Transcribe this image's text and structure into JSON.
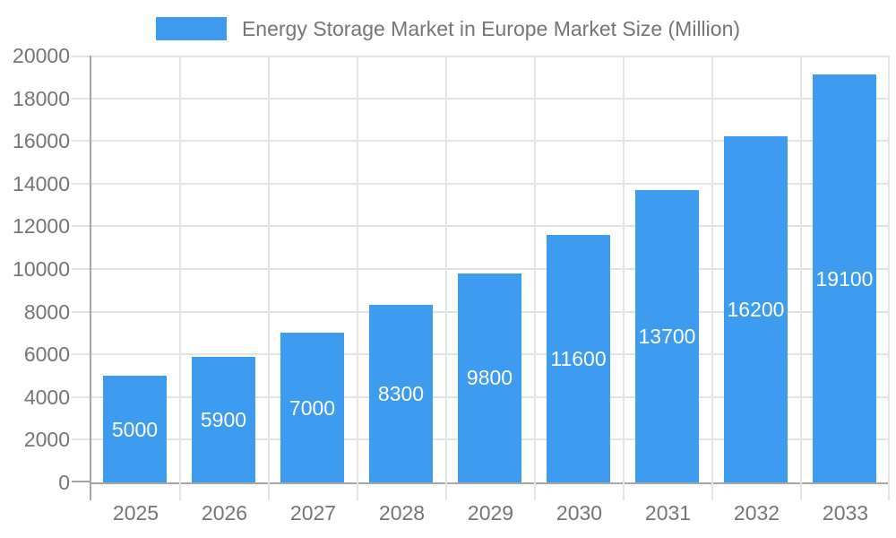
{
  "chart_data": {
    "type": "bar",
    "title": "Energy Storage Market in Europe Market Size (Million)",
    "categories": [
      "2025",
      "2026",
      "2027",
      "2028",
      "2029",
      "2030",
      "2031",
      "2032",
      "2033"
    ],
    "values": [
      5000,
      5900,
      7000,
      8300,
      9800,
      11600,
      13700,
      16200,
      19100
    ],
    "xlabel": "",
    "ylabel": "",
    "ylim": [
      0,
      20000
    ],
    "yticks": [
      0,
      2000,
      4000,
      6000,
      8000,
      10000,
      12000,
      14000,
      16000,
      18000,
      20000
    ],
    "grid": true,
    "legend_position": "top-center",
    "bar_labels_inside": true,
    "colors": {
      "bar": "#3D9BF0",
      "bar_label": "#FFFFFF",
      "axis_line": "#A6A6A6",
      "gridline": "#E3E3E3",
      "tick": "#E3E3E3",
      "axis_text": "#757575",
      "legend_text": "#757575",
      "background": "#FFFFFF"
    }
  }
}
